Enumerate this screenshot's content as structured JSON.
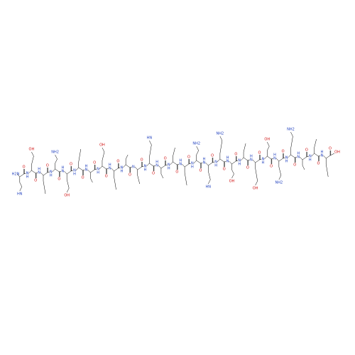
{
  "molecule": {
    "residues": [
      {
        "amide": "H2N",
        "carbonyl": "O",
        "side": "HN"
      },
      {
        "amide": "N",
        "hydrogen": "H",
        "carbonyl": "O",
        "side": "OH"
      },
      {
        "amide": "N",
        "hydrogen": "H",
        "carbonyl": "O"
      },
      {
        "amide": "N",
        "hydrogen": "H",
        "carbonyl": "O",
        "side": "NH2"
      },
      {
        "amide": "N",
        "hydrogen": "H",
        "carbonyl": "O",
        "side": "OH"
      },
      {
        "amide": "N",
        "hydrogen": "H",
        "carbonyl": "O"
      },
      {
        "amide": "N",
        "hydrogen": "H",
        "carbonyl": "O"
      },
      {
        "amide": "N",
        "hydrogen": "H",
        "carbonyl": "O",
        "side": "OH"
      },
      {
        "amide": "N",
        "hydrogen": "H",
        "carbonyl": "O"
      },
      {
        "amide": "N",
        "hydrogen": "H",
        "carbonyl": "O"
      },
      {
        "amide": "N",
        "carbonyl": "O"
      },
      {
        "amide": "N",
        "hydrogen": "H",
        "carbonyl": "O",
        "side": "HN"
      },
      {
        "amide": "N",
        "hydrogen": "H",
        "carbonyl": "O"
      },
      {
        "amide": "N",
        "hydrogen": "H",
        "carbonyl": "O"
      },
      {
        "amide": "N",
        "hydrogen": "H",
        "carbonyl": "O"
      },
      {
        "amide": "N",
        "hydrogen": "H",
        "carbonyl": "O",
        "side": "NH2"
      },
      {
        "amide": "N",
        "hydrogen": "H",
        "carbonyl": "O",
        "side": "HN"
      },
      {
        "amide": "N",
        "hydrogen": "H",
        "carbonyl": "O",
        "side": "NH2"
      },
      {
        "amide": "N",
        "hydrogen": "H",
        "carbonyl": "O",
        "side": "OH"
      },
      {
        "amide": "N",
        "hydrogen": "H",
        "carbonyl": "O"
      },
      {
        "amide": "N",
        "hydrogen": "H",
        "carbonyl": "O",
        "side": "OH"
      },
      {
        "amide": "N",
        "hydrogen": "H",
        "carbonyl": "O",
        "side": "OH"
      },
      {
        "amide": "N",
        "hydrogen": "H",
        "carbonyl": "O",
        "side": "NH2"
      },
      {
        "amide": "N",
        "hydrogen": "H",
        "carbonyl": "O",
        "side": "NH2"
      },
      {
        "amide": "N",
        "hydrogen": "H",
        "carbonyl": "O"
      },
      {
        "amide": "N",
        "hydrogen": "H",
        "carbonyl": "O"
      },
      {
        "amide": "N",
        "hydrogen": "H",
        "carbonyl": "O"
      }
    ],
    "terminal": "OH"
  }
}
